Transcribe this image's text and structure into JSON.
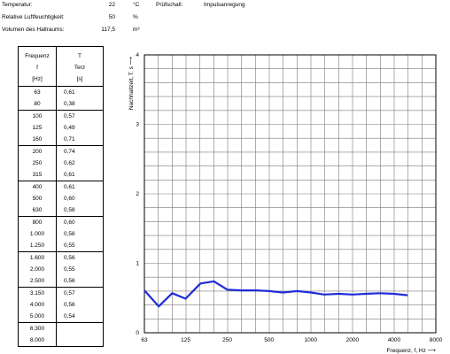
{
  "header": {
    "temperature": {
      "label": "Temperatur:",
      "value": "22",
      "unit": "°C"
    },
    "humidity": {
      "label": "Relative Luftfeuchtigkeit:",
      "value": "50",
      "unit": "%"
    },
    "volume": {
      "label": "Volumen des Hallraums:",
      "value": "117,5",
      "unit": "m³"
    },
    "excitation": {
      "label": "Prüfschall:",
      "value": "Impulsanregung"
    }
  },
  "table": {
    "col1_header": [
      "Frequenz",
      "f",
      "[Hz]"
    ],
    "col2_header": [
      "T",
      "Terz",
      "[s]"
    ],
    "groups": [
      [
        [
          "63",
          "0,61"
        ],
        [
          "80",
          "0,38"
        ]
      ],
      [
        [
          "100",
          "0,57"
        ],
        [
          "125",
          "0,49"
        ],
        [
          "160",
          "0,71"
        ]
      ],
      [
        [
          "200",
          "0,74"
        ],
        [
          "250",
          "0,62"
        ],
        [
          "315",
          "0,61"
        ]
      ],
      [
        [
          "400",
          "0,61"
        ],
        [
          "500",
          "0,60"
        ],
        [
          "630",
          "0,58"
        ]
      ],
      [
        [
          "800",
          "0,60"
        ],
        [
          "1.000",
          "0,58"
        ],
        [
          "1.250",
          "0,55"
        ]
      ],
      [
        [
          "1.600",
          "0,56"
        ],
        [
          "2.000",
          "0,55"
        ],
        [
          "2.500",
          "0,56"
        ]
      ],
      [
        [
          "3.150",
          "0,57"
        ],
        [
          "4.000",
          "0,56"
        ],
        [
          "5.000",
          "0,54"
        ]
      ],
      [
        [
          "6.300",
          ""
        ],
        [
          "8.000",
          ""
        ]
      ]
    ]
  },
  "chart_data": {
    "type": "line",
    "xlabel": "Frequenz, f, Hz ⟶",
    "ylabel": "Nachhallzeit, T, s ⟶",
    "x_scale": "log",
    "xlim": [
      63,
      8000
    ],
    "ylim": [
      0,
      4
    ],
    "x_ticks": [
      "63",
      "125",
      "250",
      "500",
      "1000",
      "2000",
      "4000",
      "8000"
    ],
    "y_ticks": [
      "0",
      "1",
      "2",
      "3",
      "4"
    ],
    "grid": true,
    "line_color": "#1f2bd8",
    "series": [
      {
        "x": [
          63,
          80,
          100,
          125,
          160,
          200,
          250,
          315,
          400,
          500,
          630,
          800,
          1000,
          1250,
          1600,
          2000,
          2500,
          3150,
          4000,
          5000
        ],
        "values": [
          0.61,
          0.38,
          0.57,
          0.49,
          0.71,
          0.74,
          0.62,
          0.61,
          0.61,
          0.6,
          0.58,
          0.6,
          0.58,
          0.55,
          0.56,
          0.55,
          0.56,
          0.57,
          0.56,
          0.54
        ]
      }
    ]
  }
}
